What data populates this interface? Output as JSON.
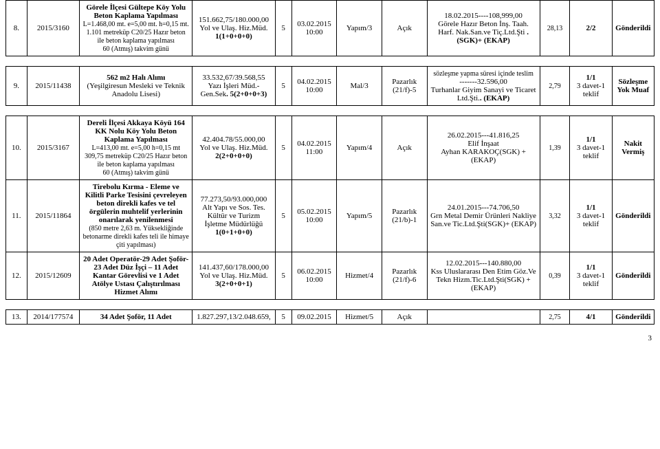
{
  "footer": {
    "page_number": "3"
  },
  "rows": {
    "r8": {
      "sn": "8.",
      "ref": "2015/3160",
      "desc_main": "Görele İlçesi Gültepe Köy Yolu Beton Kaplama Yapılması",
      "desc_sub1": "L=1.468,00 mt. e=5,00 mt. h=0,15 mt.",
      "desc_sub2": "1.101 metreküp  C20/25 Hazır beton ile  beton  kaplama yapılması",
      "desc_sub3": "60 (Atmış) takvim günü",
      "amount_line1": "151.662,75/180.000,00",
      "amount_line2": "Yol ve Ulaş. Hiz.Müd.",
      "amount_line3": "1(1+0+0+0)",
      "n5": "5",
      "date": "03.02.2015 10:00",
      "type": "Yapım/3",
      "open": "Açık",
      "award_l1": "18.02.2015----108,999,00",
      "award_l2": "Görele Hazır Beton İnş. Taah. Harf. Nak.San.ve Tiç.Ltd.Şti",
      "award_l3": ". (SGK)+ (EKAP)",
      "pct": "28,13",
      "bid": "2/2",
      "status": "Gönderildi"
    },
    "r9": {
      "sn": "9.",
      "ref": "2015/11438",
      "desc_main": "562 m2 Halı Alımı",
      "desc_sub1": "(Yeşilgiresun Mesleki ve Teknik Anadolu Lisesi)",
      "amount_line1": "33.532,67/39.568,55",
      "amount_line2": "Yazı İşleri Müd.- Gen.Sek",
      "amount_line3": ". 5(2+0+0+3)",
      "n5": "5",
      "date": "04.02.2015 10:00",
      "type": "Mal/3",
      "open": "Pazarlık (21/f)-5",
      "award_pre": "sözleşme yapma süresi içinde teslim",
      "award_l1": "-------32.596,00",
      "award_l2": "Turhanlar Giyim Sanayi ve Ticaret Ltd.Şti.",
      "award_l3": ". (EKAP)",
      "pct": "2,79",
      "bid_l1": "1/1",
      "bid_l2": "3 davet-1 teklif",
      "status": "Sözleşme Yok Muaf"
    },
    "r10": {
      "sn": "10.",
      "ref": "2015/3167",
      "desc_main": "Dereli İlçesi Akkaya Köyü 164 KK Nolu Köy Yolu Beton Kaplama Yapılması",
      "desc_sub1": "L=413,00 mt. e=5,00 h=0,15 mt",
      "desc_sub2": "309,75 metreküp  C20/25 Hazır beton ile  beton  kaplama yapılması",
      "desc_sub3": "60 (Atmış) takvim günü",
      "amount_line1": "42.404.78/55.000,00",
      "amount_line2": "Yol ve Ulaş. Hiz.Müd.",
      "amount_line3": "2(2+0+0+0)",
      "n5": "5",
      "date": "04.02.2015 11:00",
      "type": "Yapım/4",
      "open": "Açık",
      "award_l1": "26.02.2015---41.816,25",
      "award_l2": "Elif İnşaat",
      "award_l3": "Ayhan KARAKOÇ(SGK) +(EKAP)",
      "pct": "1,39",
      "bid_l1": "1/1",
      "bid_l2": "3 davet-1 teklif",
      "status": "Nakit Vermiş"
    },
    "r11": {
      "sn": "11.",
      "ref": "2015/11864",
      "desc_main": "Tirebolu Kırma - Eleme ve Kilitli Parke  Tesisini çevreleyen beton direkli kafes ve tel örgülerin muhtelif yerlerinin onarılarak yenilenmesi",
      "desc_sub1": "(850 metre 2,63 m. Yüksekliğinde betonarme direkli kafes teli ile himaye çiti yapılması)",
      "amount_line1": "77.273,50/93.000,000",
      "amount_line2": "Alt Yapı ve Sos. Tes. Kültür ve Turizm İşletme Müdürlüğü",
      "amount_line3": "1(0+1+0+0)",
      "n5": "5",
      "date": "05.02.2015 10:00",
      "type": "Yapım/5",
      "open": "Pazarlık (21/b)-1",
      "award_l1": "24.01.2015---74.706,50",
      "award_l2": "Grn Metal Demir Ürünleri Nakliye San.ve Tic.Ltd.Şti(SGK)+ (EKAP)",
      "pct": "3,32",
      "bid_l1": "1/1",
      "bid_l2": "3 davet-1 teklif",
      "status": "Gönderildi"
    },
    "r12": {
      "sn": "12.",
      "ref": "2015/12609",
      "desc_main": "20  Adet Operatör-29 Adet Şoför-23 Adet  Düz  İşçi – 11 Adet  Kantar Görevlisi ve 1 Adet  Atölye Ustası Çalıştırılması Hizmet  Alımı",
      "amount_line1": "141.437,60/178.000,00",
      "amount_line2": "Yol ve Ulaş. Hiz.Müd.",
      "amount_line3": "3(2+0+0+1)",
      "n5": "5",
      "date": "06.02.2015 10:00",
      "type": "Hizmet/4",
      "open": "Pazarlık (21/f)-6",
      "award_l1": "12.02.2015---140.880,00",
      "award_l2": "Kss Uluslararası Den Etim Göz.Ve Tekn Hizm.Tic.Ltd.Şti(SGK) +(EKAP)",
      "pct": "0,39",
      "bid_l1": "1/1",
      "bid_l2": "3 davet-1 teklif",
      "status": "Gönderildi"
    },
    "r13": {
      "sn": "13.",
      "ref": "2014/177574",
      "desc_main": "34 Adet Şoför, 11 Adet",
      "amount_line1": "1.827.297,13/2.048.659,",
      "n5": "5",
      "date": "09.02.2015",
      "type": "Hizmet/5",
      "open": "Açık",
      "pct": "2,75",
      "bid_l1": "4/1",
      "status": "Gönderildi"
    }
  }
}
